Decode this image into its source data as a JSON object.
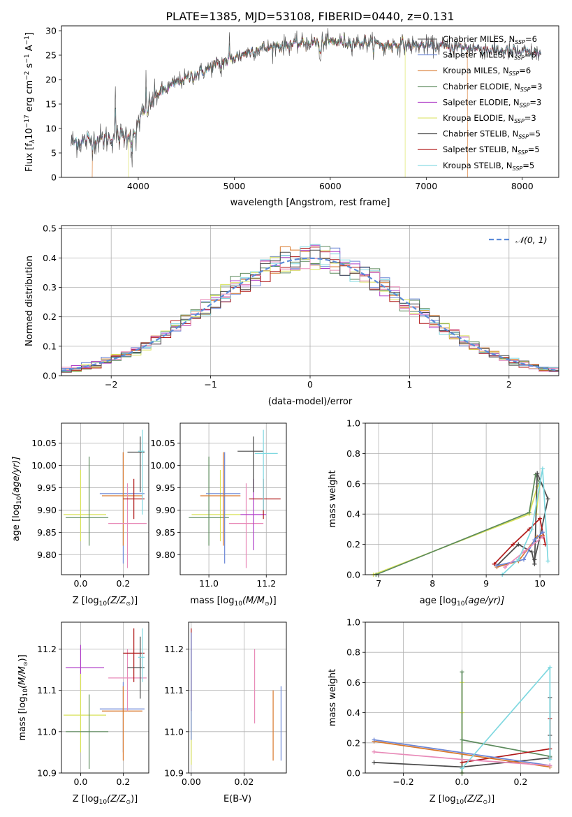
{
  "figure": {
    "title": "PLATE=1385, MJD=53108, FIBERID=0440, z=0.131"
  },
  "colors": {
    "Chabrier MILES": "#4a4a4a",
    "Salpeter MILES": "#6b86d6",
    "Kroupa MILES": "#d9782b",
    "Chabrier ELODIE": "#5c8a5c",
    "Salpeter ELODIE": "#b040c8",
    "Kroupa ELODIE": "#d9e25a",
    "Chabrier STELIB": "#4a4a4a",
    "Salpeter STELIB": "#b01818",
    "Kroupa STELIB": "#7fd8e0",
    "pink": "#e88ab8",
    "normal": "#5b8bd8"
  },
  "chart_data": [
    {
      "id": "spectrum",
      "type": "line",
      "xlabel": "wavelength [Angstrom, rest frame]",
      "ylabel_parts": [
        "Flux [f",
        "λ",
        "10",
        "−17",
        " erg cm",
        "−2",
        " s",
        "−1",
        " A",
        "−1",
        "]"
      ],
      "xlim": [
        3200,
        8380
      ],
      "ylim": [
        0,
        31
      ],
      "xticks": [
        "4000",
        "5000",
        "6000",
        "7000",
        "8000"
      ],
      "xtick_values": [
        4000,
        5000,
        6000,
        7000,
        8000
      ],
      "yticks": [
        "0",
        "5",
        "10",
        "15",
        "20",
        "25",
        "30"
      ],
      "ytick_values": [
        0,
        5,
        10,
        15,
        20,
        25,
        30
      ],
      "continuum_knots": [
        [
          3300,
          7.2
        ],
        [
          3500,
          7.5
        ],
        [
          3700,
          8.0
        ],
        [
          3850,
          8.5
        ],
        [
          3950,
          9.5
        ],
        [
          4050,
          13
        ],
        [
          4200,
          17
        ],
        [
          4400,
          19.5
        ],
        [
          4600,
          21
        ],
        [
          4800,
          23
        ],
        [
          5000,
          24.5
        ],
        [
          5200,
          26
        ],
        [
          5500,
          27
        ],
        [
          5800,
          27.6
        ],
        [
          6000,
          27.8
        ],
        [
          6300,
          27.6
        ],
        [
          6600,
          27.2
        ],
        [
          6900,
          27
        ],
        [
          7200,
          26.8
        ],
        [
          7500,
          26.4
        ],
        [
          7800,
          25.8
        ],
        [
          8100,
          25.5
        ],
        [
          8200,
          25.3
        ]
      ],
      "legend": [
        {
          "label": "Chabrier MILES, N",
          "sub": "SSP",
          "tail": "=6",
          "color": "#4a4a4a"
        },
        {
          "label": "Salpeter MILES, N",
          "sub": "SSP",
          "tail": "=6",
          "color": "#6b86d6"
        },
        {
          "label": "Kroupa MILES, N",
          "sub": "SSP",
          "tail": "=6",
          "color": "#d9782b"
        },
        {
          "label": "Chabrier ELODIE, N",
          "sub": "SSP",
          "tail": "=3",
          "color": "#5c8a5c"
        },
        {
          "label": "Salpeter ELODIE, N",
          "sub": "SSP",
          "tail": "=3",
          "color": "#b040c8"
        },
        {
          "label": "Kroupa ELODIE, N",
          "sub": "SSP",
          "tail": "=3",
          "color": "#d9e25a"
        },
        {
          "label": "Chabrier STELIB, N",
          "sub": "SSP",
          "tail": "=5",
          "color": "#4a4a4a"
        },
        {
          "label": "Salpeter STELIB, N",
          "sub": "SSP",
          "tail": "=5",
          "color": "#b01818"
        },
        {
          "label": "Kroupa STELIB, N",
          "sub": "SSP",
          "tail": "=5",
          "color": "#7fd8e0"
        }
      ]
    },
    {
      "id": "residuals",
      "type": "step",
      "xlabel": "(data-model)/error",
      "ylabel": "Normed distribution",
      "xlim": [
        -2.5,
        2.5
      ],
      "ylim": [
        0,
        0.51
      ],
      "xticks": [
        "−2",
        "−1",
        "0",
        "1",
        "2"
      ],
      "xtick_values": [
        -2,
        -1,
        0,
        1,
        2
      ],
      "yticks": [
        "0.0",
        "0.1",
        "0.2",
        "0.3",
        "0.4",
        "0.5"
      ],
      "ytick_values": [
        0,
        0.1,
        0.2,
        0.3,
        0.4,
        0.5
      ],
      "bin_width": 0.1,
      "legend_label": "𝒩(0, 1)",
      "series_colors": [
        "#6b86d6",
        "#d9782b",
        "#5c8a5c",
        "#b040c8",
        "#d9e25a",
        "#b01818",
        "#7fd8e0",
        "#e88ab8",
        "#4a4a4a"
      ]
    },
    {
      "id": "age-vs-Z",
      "type": "errorbar",
      "xlabel": "Z [log",
      "xlabel_sub": "10",
      "xlabel_tail": "(Z/Z",
      "xlabel_end": ")]",
      "ylabel": "age  [log",
      "ylabel_sub": "10",
      "ylabel_tail": "(age/yr)]",
      "xlim": [
        -0.09,
        0.32
      ],
      "ylim": [
        9.755,
        10.095
      ],
      "xticks": [
        "0.0",
        "0.2"
      ],
      "xtick_values": [
        0,
        0.2
      ],
      "yticks": [
        "9.80",
        "9.85",
        "9.90",
        "9.95",
        "10.00",
        "10.05"
      ],
      "ytick_values": [
        9.8,
        9.85,
        9.9,
        9.95,
        10.0,
        10.05
      ],
      "points": [
        {
          "x": -0.0,
          "y": 9.89,
          "xlo": -0.08,
          "xhi": 0.12,
          "ylo": 9.83,
          "yhi": 9.99,
          "color": "#d9e25a"
        },
        {
          "x": 0.04,
          "y": 9.883,
          "xlo": -0.07,
          "xhi": 0.13,
          "ylo": 9.82,
          "yhi": 10.02,
          "color": "#5c8a5c"
        },
        {
          "x": 0.2,
          "y": 9.937,
          "xlo": 0.09,
          "xhi": 0.3,
          "ylo": 9.78,
          "yhi": 10.03,
          "color": "#6b86d6"
        },
        {
          "x": 0.2,
          "y": 9.932,
          "xlo": 0.1,
          "xhi": 0.29,
          "ylo": 9.82,
          "yhi": 10.03,
          "color": "#d9782b"
        },
        {
          "x": 0.22,
          "y": 9.87,
          "xlo": 0.13,
          "xhi": 0.31,
          "ylo": 9.77,
          "yhi": 9.96,
          "color": "#e88ab8"
        },
        {
          "x": 0.25,
          "y": 9.925,
          "xlo": 0.2,
          "xhi": 0.3,
          "ylo": 9.88,
          "yhi": 9.97,
          "color": "#b01818"
        },
        {
          "x": 0.28,
          "y": 10.03,
          "xlo": 0.22,
          "xhi": 0.3,
          "ylo": 9.94,
          "yhi": 10.065,
          "color": "#4a4a4a"
        },
        {
          "x": 0.29,
          "y": 10.032,
          "xlo": 0.27,
          "xhi": 0.3,
          "ylo": 9.89,
          "yhi": 10.08,
          "color": "#7fd8e0"
        }
      ]
    },
    {
      "id": "age-vs-mass",
      "type": "errorbar",
      "xlabel": "mass [log",
      "xlabel_sub": "10",
      "xlabel_tail": "(M/M",
      "xlabel_end": ")]",
      "xlim": [
        10.9,
        11.27
      ],
      "ylim": [
        9.755,
        10.095
      ],
      "xticks": [
        "11.0",
        "11.2"
      ],
      "xtick_values": [
        11.0,
        11.2
      ],
      "yticks": [
        "9.80",
        "9.85",
        "9.90",
        "9.95",
        "10.00",
        "10.05"
      ],
      "ytick_values": [
        9.8,
        9.85,
        9.9,
        9.95,
        10.0,
        10.05
      ],
      "points": [
        {
          "x": 11.04,
          "y": 9.89,
          "xlo": 10.94,
          "xhi": 11.11,
          "ylo": 9.83,
          "yhi": 9.99,
          "color": "#d9e25a"
        },
        {
          "x": 11.0,
          "y": 9.883,
          "xlo": 10.93,
          "xhi": 11.07,
          "ylo": 9.82,
          "yhi": 10.02,
          "color": "#5c8a5c"
        },
        {
          "x": 11.055,
          "y": 9.937,
          "xlo": 10.99,
          "xhi": 11.11,
          "ylo": 9.78,
          "yhi": 10.03,
          "color": "#6b86d6"
        },
        {
          "x": 11.05,
          "y": 9.932,
          "xlo": 10.97,
          "xhi": 11.11,
          "ylo": 9.82,
          "yhi": 10.03,
          "color": "#d9782b"
        },
        {
          "x": 11.13,
          "y": 9.87,
          "xlo": 11.07,
          "xhi": 11.19,
          "ylo": 9.77,
          "yhi": 9.96,
          "color": "#e88ab8"
        },
        {
          "x": 11.155,
          "y": 9.89,
          "xlo": 11.11,
          "xhi": 11.2,
          "ylo": 9.81,
          "yhi": 9.97,
          "color": "#b040c8"
        },
        {
          "x": 11.19,
          "y": 9.925,
          "xlo": 11.14,
          "xhi": 11.25,
          "ylo": 9.88,
          "yhi": 9.97,
          "color": "#b01818"
        },
        {
          "x": 11.155,
          "y": 10.032,
          "xlo": 11.1,
          "xhi": 11.19,
          "ylo": 9.94,
          "yhi": 10.065,
          "color": "#4a4a4a"
        },
        {
          "x": 11.19,
          "y": 10.027,
          "xlo": 11.16,
          "xhi": 11.24,
          "ylo": 9.9,
          "yhi": 10.08,
          "color": "#7fd8e0"
        }
      ]
    },
    {
      "id": "mass-weight-vs-age",
      "type": "line",
      "xlabel": "age  [log",
      "xlabel_sub": "10",
      "xlabel_tail": "(age/yr)]",
      "ylabel": "mass weight",
      "xlim": [
        6.75,
        10.35
      ],
      "ylim": [
        0,
        1
      ],
      "xticks": [
        "7",
        "8",
        "9",
        "10"
      ],
      "xtick_values": [
        7,
        8,
        9,
        10
      ],
      "yticks": [
        "0.0",
        "0.2",
        "0.4",
        "0.6",
        "0.8",
        "1.0"
      ],
      "ytick_values": [
        0,
        0.2,
        0.4,
        0.6,
        0.8,
        1.0
      ],
      "series": [
        {
          "color": "#d9e25a",
          "x": [
            6.9,
            9.8,
            9.95,
            10.0,
            9.93
          ],
          "y": [
            0.0,
            0.4,
            0.58,
            0.6,
            0.4
          ]
        },
        {
          "color": "#5c8a5c",
          "x": [
            6.95,
            9.8,
            9.92,
            10.0
          ],
          "y": [
            0.0,
            0.41,
            0.66,
            0.6
          ]
        },
        {
          "color": "#4a4a4a",
          "x": [
            9.2,
            9.6,
            9.85,
            9.9,
            9.95,
            10.15,
            10.0,
            9.9
          ],
          "y": [
            0.06,
            0.2,
            0.15,
            0.07,
            0.67,
            0.5,
            0.25,
            0.1
          ]
        },
        {
          "color": "#b01818",
          "x": [
            9.15,
            9.5,
            9.8,
            10.0,
            10.1
          ],
          "y": [
            0.07,
            0.2,
            0.3,
            0.37,
            0.2
          ]
        },
        {
          "color": "#d9782b",
          "x": [
            9.2,
            9.6,
            9.95,
            10.05
          ],
          "y": [
            0.05,
            0.09,
            0.25,
            0.26
          ]
        },
        {
          "color": "#6b86d6",
          "x": [
            9.2,
            9.7,
            9.9,
            10.05
          ],
          "y": [
            0.06,
            0.1,
            0.23,
            0.28
          ]
        },
        {
          "color": "#e88ab8",
          "x": [
            9.35,
            9.7,
            10.05
          ],
          "y": [
            0.05,
            0.15,
            0.25
          ]
        },
        {
          "color": "#7fd8e0",
          "x": [
            9.3,
            9.6,
            9.85,
            10.05,
            10.15
          ],
          "y": [
            0.0,
            0.1,
            0.3,
            0.7,
            0.09
          ]
        }
      ]
    },
    {
      "id": "mass-vs-Z",
      "type": "errorbar",
      "xlabel": "Z [log",
      "xlabel_sub": "10",
      "xlabel_tail": "(Z/Z",
      "xlabel_end": ")]",
      "ylabel": "mass [log",
      "ylabel_sub": "10",
      "ylabel_tail": "(M/M",
      "ylabel_end": ")]",
      "xlim": [
        -0.09,
        0.32
      ],
      "ylim": [
        10.9,
        11.265
      ],
      "xticks": [
        "0.0",
        "0.2"
      ],
      "xtick_values": [
        0,
        0.2
      ],
      "yticks": [
        "10.9",
        "11.0",
        "11.1",
        "11.2"
      ],
      "ytick_values": [
        10.9,
        11.0,
        11.1,
        11.2
      ],
      "points": [
        {
          "x": 0.0,
          "y": 11.155,
          "xlo": -0.07,
          "xhi": 0.11,
          "ylo": 11.1,
          "yhi": 11.21,
          "color": "#b040c8"
        },
        {
          "x": 0.0,
          "y": 11.04,
          "xlo": -0.08,
          "xhi": 0.12,
          "ylo": 10.95,
          "yhi": 11.14,
          "color": "#d9e25a"
        },
        {
          "x": 0.04,
          "y": 11.0,
          "xlo": -0.07,
          "xhi": 0.13,
          "ylo": 10.91,
          "yhi": 11.09,
          "color": "#5c8a5c"
        },
        {
          "x": 0.2,
          "y": 11.055,
          "xlo": 0.09,
          "xhi": 0.3,
          "ylo": 10.95,
          "yhi": 11.12,
          "color": "#6b86d6"
        },
        {
          "x": 0.2,
          "y": 11.05,
          "xlo": 0.1,
          "xhi": 0.29,
          "ylo": 10.93,
          "yhi": 11.11,
          "color": "#d9782b"
        },
        {
          "x": 0.22,
          "y": 11.13,
          "xlo": 0.13,
          "xhi": 0.31,
          "ylo": 11.05,
          "yhi": 11.2,
          "color": "#e88ab8"
        },
        {
          "x": 0.25,
          "y": 11.19,
          "xlo": 0.2,
          "xhi": 0.3,
          "ylo": 11.12,
          "yhi": 11.25,
          "color": "#b01818"
        },
        {
          "x": 0.28,
          "y": 11.155,
          "xlo": 0.22,
          "xhi": 0.3,
          "ylo": 11.08,
          "yhi": 11.23,
          "color": "#4a4a4a"
        },
        {
          "x": 0.29,
          "y": 11.18,
          "xlo": 0.27,
          "xhi": 0.3,
          "ylo": 11.12,
          "yhi": 11.25,
          "color": "#7fd8e0"
        }
      ]
    },
    {
      "id": "mass-vs-EBV",
      "type": "errorbar",
      "xlabel": "E(B-V)",
      "xlim": [
        -0.001,
        0.036
      ],
      "ylim": [
        10.9,
        11.265
      ],
      "xticks": [
        "0.00",
        "0.02"
      ],
      "xtick_values": [
        0,
        0.02
      ],
      "yticks": [
        "10.9",
        "11.0",
        "11.1",
        "11.2"
      ],
      "ytick_values": [
        10.9,
        11.0,
        11.1,
        11.2
      ],
      "points": [
        {
          "x": 0.0,
          "y": 11.0,
          "xlo": 0.0,
          "xhi": 0.0,
          "ylo": 10.92,
          "yhi": 11.14,
          "color": "#d9e25a"
        },
        {
          "x": 0.0,
          "y": 11.15,
          "xlo": 0.0,
          "xhi": 0.0,
          "ylo": 11.05,
          "yhi": 11.25,
          "color": "#b01818"
        },
        {
          "x": 0.0,
          "y": 11.12,
          "xlo": 0.0,
          "xhi": 0.0,
          "ylo": 10.98,
          "yhi": 11.24,
          "color": "#6b86d6"
        },
        {
          "x": 0.024,
          "y": 11.1,
          "xlo": 0.024,
          "xhi": 0.024,
          "ylo": 11.02,
          "yhi": 11.2,
          "color": "#e88ab8"
        },
        {
          "x": 0.031,
          "y": 11.02,
          "xlo": 0.031,
          "xhi": 0.031,
          "ylo": 10.93,
          "yhi": 11.1,
          "color": "#d9782b"
        },
        {
          "x": 0.034,
          "y": 11.02,
          "xlo": 0.034,
          "xhi": 0.034,
          "ylo": 10.93,
          "yhi": 11.11,
          "color": "#6b86d6"
        }
      ]
    },
    {
      "id": "mass-weight-vs-Z",
      "type": "line",
      "xlabel": "Z [log",
      "xlabel_sub": "10",
      "xlabel_tail": "(Z/Z",
      "xlabel_end": ")]",
      "ylabel": "mass weight",
      "xlim": [
        -0.33,
        0.33
      ],
      "ylim": [
        0,
        1
      ],
      "xticks": [
        "−0.2",
        "0.0",
        "0.2"
      ],
      "xtick_values": [
        -0.2,
        0,
        0.2
      ],
      "yticks": [
        "0.0",
        "0.2",
        "0.4",
        "0.6",
        "0.8",
        "1.0"
      ],
      "ytick_values": [
        0,
        0.2,
        0.4,
        0.6,
        0.8,
        1.0
      ],
      "series": [
        {
          "color": "#d9e25a",
          "x": [
            0.0,
            0.0,
            0.0
          ],
          "y": [
            0.0,
            0.6,
            0.4
          ]
        },
        {
          "color": "#5c8a5c",
          "x": [
            0.0,
            0.0,
            0.0,
            0.3
          ],
          "y": [
            0.67,
            0.0,
            0.22,
            0.11
          ]
        },
        {
          "color": "#4a4a4a",
          "x": [
            -0.3,
            0.0,
            0.3,
            0.3,
            0.3
          ],
          "y": [
            0.07,
            0.04,
            0.1,
            0.5,
            0.25
          ]
        },
        {
          "color": "#b01818",
          "x": [
            0.0,
            0.3,
            0.3
          ],
          "y": [
            0.07,
            0.16,
            0.36
          ]
        },
        {
          "color": "#d9782b",
          "x": [
            -0.3,
            0.3
          ],
          "y": [
            0.21,
            0.04
          ]
        },
        {
          "color": "#6b86d6",
          "x": [
            -0.3,
            0.3
          ],
          "y": [
            0.22,
            0.05
          ]
        },
        {
          "color": "#e88ab8",
          "x": [
            -0.3,
            0.0,
            0.3
          ],
          "y": [
            0.14,
            0.09,
            0.05
          ]
        },
        {
          "color": "#7fd8e0",
          "x": [
            0.0,
            0.3,
            0.3
          ],
          "y": [
            0.03,
            0.7,
            0.09
          ]
        }
      ]
    }
  ]
}
